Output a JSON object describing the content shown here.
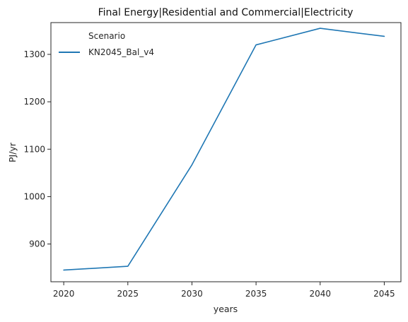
{
  "chart_data": {
    "type": "line",
    "title": "Final Energy|Residential and Commercial|Electricity",
    "xlabel": "years",
    "ylabel": "PJ/yr",
    "x": [
      2020,
      2025,
      2030,
      2035,
      2040,
      2045
    ],
    "xticks": [
      "2020",
      "2025",
      "2030",
      "2035",
      "2040",
      "2045"
    ],
    "yticks": [
      "900",
      "1000",
      "1100",
      "1200",
      "1300"
    ],
    "ytick_values": [
      900,
      1000,
      1100,
      1200,
      1300
    ],
    "xlim": [
      2019,
      2046.3
    ],
    "ylim": [
      820.4,
      1367.0
    ],
    "grid": false,
    "legend": {
      "title": "Scenario",
      "placement": "upper-left"
    },
    "series": [
      {
        "name": "KN2045_Bal_v4",
        "color": "#1f77b4",
        "values": [
          845,
          853,
          1067,
          1320,
          1355,
          1338
        ]
      }
    ]
  }
}
